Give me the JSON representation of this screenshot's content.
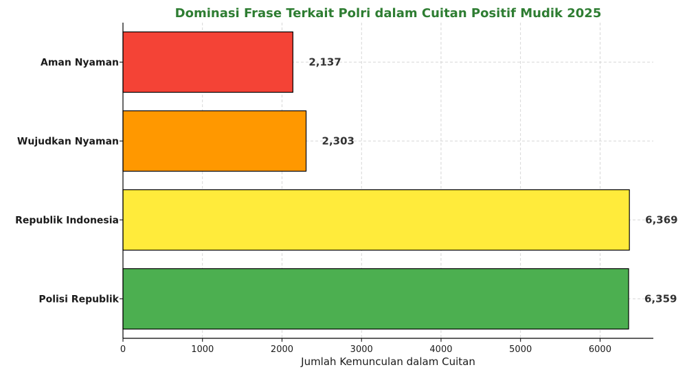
{
  "chart_data": {
    "type": "bar",
    "orientation": "horizontal",
    "title": "Dominasi Frase Terkait Polri dalam Cuitan Positif Mudik 2025",
    "title_color": "#2e7d32",
    "xlabel": "Jumlah Kemunculan dalam Cuitan",
    "ylabel": "",
    "categories": [
      "Aman Nyaman",
      "Wujudkan Nyaman",
      "Republik Indonesia",
      "Polisi Republik"
    ],
    "values": [
      2137,
      2303,
      6369,
      6359
    ],
    "value_labels": [
      "2,137",
      "2,303",
      "6,369",
      "6,359"
    ],
    "colors": [
      "#f44336",
      "#ff9800",
      "#ffeb3b",
      "#4caf50"
    ],
    "xlim": [
      0,
      6670
    ],
    "xticks": [
      0,
      1000,
      2000,
      3000,
      4000,
      5000,
      6000
    ],
    "grid": true
  }
}
